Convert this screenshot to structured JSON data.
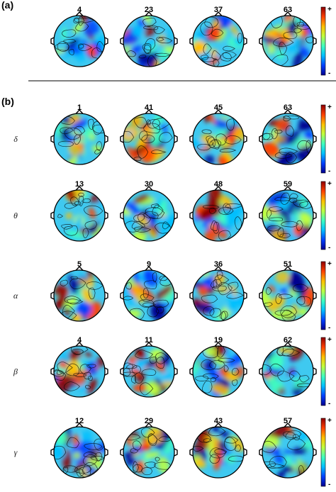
{
  "figure": {
    "panels": [
      {
        "label": "(a)",
        "rows": [
          {
            "band": "",
            "maps": [
              "4",
              "23",
              "37",
              "63"
            ]
          }
        ]
      },
      {
        "label": "(b)",
        "rows": [
          {
            "band": "δ",
            "maps": [
              "1",
              "41",
              "45",
              "63"
            ]
          },
          {
            "band": "θ",
            "maps": [
              "13",
              "30",
              "48",
              "59"
            ]
          },
          {
            "band": "α",
            "maps": [
              "5",
              "9",
              "36",
              "51"
            ]
          },
          {
            "band": "β",
            "maps": [
              "4",
              "11",
              "19",
              "62"
            ]
          },
          {
            "band": "γ",
            "maps": [
              "12",
              "29",
              "43",
              "57"
            ]
          }
        ]
      }
    ],
    "colorbar": {
      "max_label": "+",
      "min_label": "-",
      "colormap": "jet"
    },
    "colors": {
      "jet": [
        "#00008f",
        "#0040ff",
        "#00c0ff",
        "#40ffbf",
        "#bfff40",
        "#ffc000",
        "#ff4000",
        "#8f0000"
      ],
      "background": "#3fc9f0",
      "contour": "#000000",
      "divider": "#000000"
    }
  }
}
